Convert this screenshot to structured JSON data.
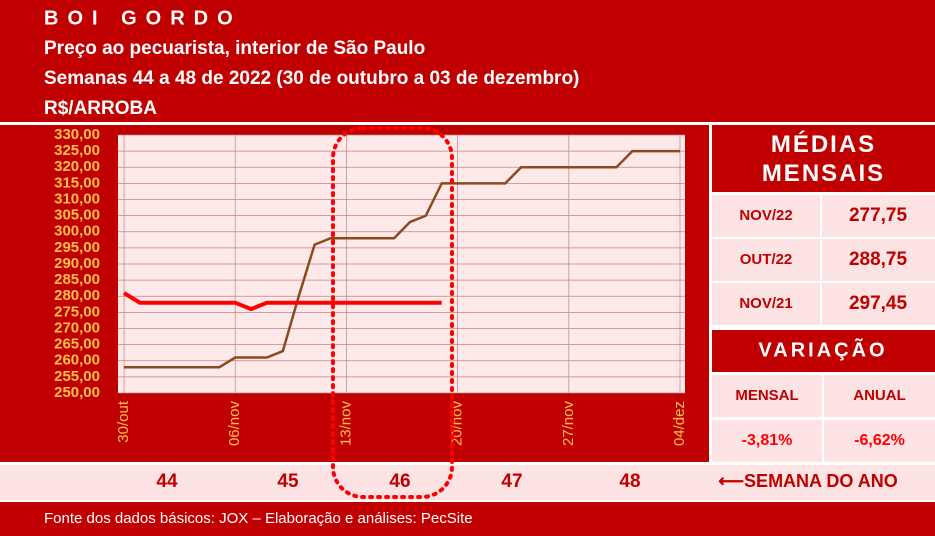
{
  "header": {
    "title": "BOI GORDO",
    "subtitle": "Preço ao pecuarista, interior de São Paulo",
    "period": "Semanas 44 a 48 de 2022 (30 de outubro a 03 de dezembro)",
    "unit": "R$/ARROBA"
  },
  "chart_data": {
    "type": "line",
    "categories": [
      "30/out",
      null,
      null,
      null,
      null,
      null,
      null,
      "06/nov",
      null,
      null,
      null,
      null,
      null,
      null,
      "13/nov",
      null,
      null,
      null,
      null,
      null,
      null,
      "20/nov",
      null,
      null,
      null,
      null,
      null,
      null,
      "27/nov",
      null,
      null,
      null,
      null,
      null,
      null,
      "04/dez"
    ],
    "series": [
      {
        "color": "#8b4a1e",
        "values": [
          258,
          258,
          258,
          258,
          258,
          258,
          258,
          261,
          261,
          261,
          263,
          280,
          296,
          298,
          298,
          298,
          298,
          298,
          303,
          305,
          315,
          315,
          315,
          315,
          315,
          320,
          320,
          320,
          320,
          320,
          320,
          320,
          325,
          325,
          325,
          325
        ]
      },
      {
        "color": "#ff0000",
        "values": [
          281,
          278,
          278,
          278,
          278,
          278,
          278,
          278,
          276,
          278,
          278,
          278,
          278,
          278,
          278,
          278,
          278,
          278,
          278,
          278,
          278,
          null,
          null,
          null,
          null,
          null,
          null,
          null,
          null,
          null,
          null,
          null,
          null,
          null,
          null,
          null
        ]
      }
    ],
    "ylim": [
      250,
      330
    ],
    "yticks": [
      {
        "value": 250,
        "label": "250,00"
      },
      {
        "value": 255,
        "label": "255,00"
      },
      {
        "value": 260,
        "label": "260,00"
      },
      {
        "value": 265,
        "label": "265,00"
      },
      {
        "value": 270,
        "label": "270,00"
      },
      {
        "value": 275,
        "label": "275,00"
      },
      {
        "value": 280,
        "label": "280,00"
      },
      {
        "value": 285,
        "label": "285,00"
      },
      {
        "value": 290,
        "label": "290,00"
      },
      {
        "value": 295,
        "label": "295,00"
      },
      {
        "value": 300,
        "label": "300,00"
      },
      {
        "value": 305,
        "label": "305,00"
      },
      {
        "value": 310,
        "label": "310,00"
      },
      {
        "value": 315,
        "label": "315,00"
      },
      {
        "value": 320,
        "label": "320,00"
      },
      {
        "value": 325,
        "label": "325,00"
      },
      {
        "value": 330,
        "label": "330,00"
      }
    ],
    "grid": true
  },
  "side_panel": {
    "title": "MÉDIAS MENSAIS",
    "averages": [
      {
        "month": "NOV/22",
        "value": "277,75"
      },
      {
        "month": "OUT/22",
        "value": "288,75"
      },
      {
        "month": "NOV/21",
        "value": "297,45"
      }
    ],
    "variation_title": "VARIAÇÃO",
    "variation": [
      {
        "label": "MENSAL",
        "value": "-3,81%"
      },
      {
        "label": "ANUAL",
        "value": "-6,62%"
      }
    ]
  },
  "weeks": {
    "values": [
      44,
      45,
      46,
      47,
      48
    ],
    "label": "⟵SEMANA DO ANO"
  },
  "footer": "Fonte dos dados básicos: JOX – Elaboração e análises: PecSite"
}
